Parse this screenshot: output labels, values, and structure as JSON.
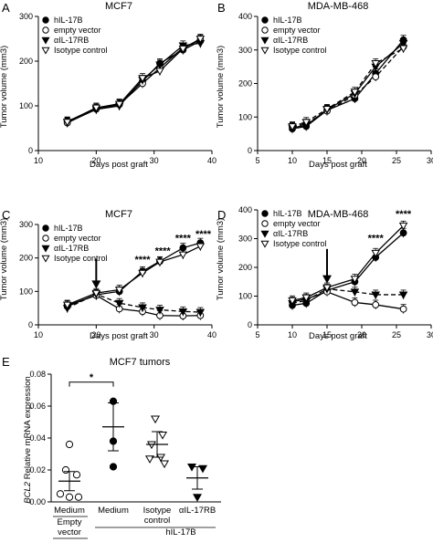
{
  "chart_data": [
    {
      "panel": "A",
      "type": "line",
      "title": "MCF7",
      "xlabel": "Days post graft",
      "ylabel": "Tumor volume (mm3)",
      "xlim": [
        10,
        40
      ],
      "ylim": [
        0,
        300
      ],
      "xticks": [
        10,
        20,
        30,
        40
      ],
      "yticks": [
        0,
        100,
        200,
        300
      ],
      "legend_position": "top-left",
      "series": [
        {
          "name": "hIL-17B",
          "marker": "circle-filled",
          "dash": false,
          "x": [
            15,
            20,
            24,
            28,
            31,
            35,
            38
          ],
          "y": [
            65,
            95,
            105,
            155,
            195,
            225,
            245
          ]
        },
        {
          "name": "empty vector",
          "marker": "circle-open",
          "dash": false,
          "x": [
            15,
            20,
            24,
            28,
            31,
            35,
            38
          ],
          "y": [
            62,
            93,
            103,
            150,
            185,
            230,
            248
          ]
        },
        {
          "name": "αIL-17RB",
          "marker": "triangle-down-filled",
          "dash": false,
          "x": [
            15,
            20,
            24,
            28,
            31,
            35,
            38
          ],
          "y": [
            63,
            92,
            100,
            158,
            192,
            235,
            240
          ]
        },
        {
          "name": "Isotype control",
          "marker": "triangle-down-open",
          "dash": false,
          "x": [
            15,
            20,
            24,
            28,
            31,
            35,
            38
          ],
          "y": [
            64,
            96,
            104,
            162,
            178,
            228,
            250
          ]
        }
      ],
      "annotations": []
    },
    {
      "panel": "B",
      "type": "line",
      "title": "MDA-MB-468",
      "xlabel": "Days post graft",
      "ylabel": "Tumor volume (mm3)",
      "xlim": [
        5,
        30
      ],
      "ylim": [
        0,
        400
      ],
      "xticks": [
        5,
        10,
        15,
        20,
        25,
        30
      ],
      "yticks": [
        0,
        100,
        200,
        300,
        400
      ],
      "legend_position": "top-left",
      "series": [
        {
          "name": "hIL-17B",
          "marker": "circle-filled",
          "dash": false,
          "x": [
            10,
            12,
            15,
            19,
            22,
            26
          ],
          "y": [
            65,
            72,
            120,
            155,
            230,
            330
          ]
        },
        {
          "name": "empty vector",
          "marker": "circle-open",
          "dash": true,
          "x": [
            10,
            12,
            15,
            19,
            22,
            26
          ],
          "y": [
            70,
            80,
            118,
            165,
            220,
            310
          ]
        },
        {
          "name": "αIL-17RB",
          "marker": "triangle-down-filled",
          "dash": false,
          "x": [
            10,
            12,
            15,
            19,
            22,
            26
          ],
          "y": [
            68,
            75,
            122,
            170,
            250,
            320
          ]
        },
        {
          "name": "Isotype control",
          "marker": "triangle-down-open",
          "dash": true,
          "x": [
            10,
            12,
            15,
            19,
            22,
            26
          ],
          "y": [
            72,
            85,
            124,
            175,
            260,
            305
          ]
        }
      ],
      "annotations": []
    },
    {
      "panel": "C",
      "type": "line",
      "title": "MCF7",
      "xlabel": "Days post graft",
      "ylabel": "Tumor volume (mm3)",
      "xlim": [
        10,
        40
      ],
      "ylim": [
        0,
        300
      ],
      "xticks": [
        10,
        20,
        30,
        40
      ],
      "yticks": [
        0,
        100,
        200,
        300
      ],
      "legend_position": "top-left",
      "arrow_at_x": 20,
      "series": [
        {
          "name": "hIL-17B",
          "marker": "circle-filled",
          "dash": false,
          "x": [
            15,
            20,
            24,
            28,
            31,
            35,
            38
          ],
          "y": [
            55,
            90,
            100,
            160,
            190,
            230,
            245
          ]
        },
        {
          "name": "empty vector",
          "marker": "circle-open",
          "dash": false,
          "x": [
            15,
            20,
            24,
            28,
            31,
            35,
            38
          ],
          "y": [
            58,
            88,
            48,
            40,
            28,
            27,
            28
          ]
        },
        {
          "name": "αIL-17RB",
          "marker": "triangle-down-filled",
          "dash": true,
          "x": [
            15,
            20,
            24,
            28,
            31,
            35,
            38
          ],
          "y": [
            50,
            92,
            65,
            52,
            45,
            40,
            38
          ]
        },
        {
          "name": "Isotype control",
          "marker": "triangle-down-open",
          "dash": false,
          "x": [
            15,
            20,
            24,
            28,
            31,
            35,
            38
          ],
          "y": [
            60,
            95,
            105,
            155,
            188,
            210,
            235
          ]
        }
      ],
      "annotations": [
        {
          "text": "****",
          "x": 28,
          "y": 185
        },
        {
          "text": "****",
          "x": 31.5,
          "y": 212
        },
        {
          "text": "****",
          "x": 35,
          "y": 250
        },
        {
          "text": "****",
          "x": 38.5,
          "y": 262
        }
      ]
    },
    {
      "panel": "D",
      "type": "line",
      "title": "MDA-MB-468",
      "xlabel": "Days post graft",
      "ylabel": "Tumor volume (mm3)",
      "xlim": [
        5,
        30
      ],
      "ylim": [
        0,
        400
      ],
      "xticks": [
        5,
        10,
        15,
        20,
        25,
        30
      ],
      "yticks": [
        0,
        100,
        200,
        300,
        400
      ],
      "legend_position": "top-left",
      "arrow_at_x": 15,
      "series": [
        {
          "name": "hIL-17B",
          "marker": "circle-filled",
          "dash": false,
          "x": [
            10,
            12,
            15,
            19,
            22,
            26
          ],
          "y": [
            68,
            75,
            120,
            150,
            235,
            320
          ]
        },
        {
          "name": "empty vector",
          "marker": "circle-open",
          "dash": false,
          "x": [
            10,
            12,
            15,
            19,
            22,
            26
          ],
          "y": [
            80,
            90,
            115,
            78,
            70,
            55
          ]
        },
        {
          "name": "αIL-17RB",
          "marker": "triangle-down-filled",
          "dash": true,
          "x": [
            10,
            12,
            15,
            19,
            22,
            26
          ],
          "y": [
            75,
            85,
            125,
            115,
            105,
            105
          ]
        },
        {
          "name": "Isotype control",
          "marker": "triangle-down-open",
          "dash": false,
          "x": [
            10,
            12,
            15,
            19,
            22,
            26
          ],
          "y": [
            85,
            95,
            130,
            160,
            250,
            345
          ]
        }
      ],
      "annotations": [
        {
          "text": "****",
          "x": 22,
          "y": 290
        },
        {
          "text": "****",
          "x": 26,
          "y": 375
        }
      ]
    },
    {
      "panel": "E",
      "type": "scatter",
      "title": "MCF7 tumors",
      "ylabel": "BCL2 Relative mRNA expression",
      "ylabel_italic_part": "BCL2",
      "ylabel_rest": " Relative mRNA expression",
      "ylim": [
        0,
        0.08
      ],
      "yticks": [
        "0.00",
        "0.02",
        "0.04",
        "0.06",
        "0.08"
      ],
      "groups": [
        {
          "label": "Medium",
          "label2": "",
          "marker": "circle-open",
          "mean": 0.013,
          "sem": 0.006,
          "values": [
            0.036,
            0.02,
            0.017,
            0.005,
            0.003,
            0.003
          ]
        },
        {
          "label": "Medium",
          "label2": "",
          "marker": "circle-filled",
          "mean": 0.047,
          "sem": 0.015,
          "values": [
            0.063,
            0.038,
            0.022
          ]
        },
        {
          "label": "Isotype",
          "label2": "control",
          "marker": "triangle-down-open",
          "mean": 0.036,
          "sem": 0.008,
          "values": [
            0.052,
            0.042,
            0.036,
            0.028,
            0.027,
            0.024
          ]
        },
        {
          "label": "αIL-17RB",
          "label2": "",
          "marker": "triangle-down-filled",
          "mean": 0.015,
          "sem": 0.007,
          "values": [
            0.022,
            0.021,
            0.003
          ]
        }
      ],
      "significance": {
        "text": "*",
        "from": 0,
        "to": 1
      },
      "bottom_labels": {
        "group1": "Empty",
        "group1_line2": "vector",
        "group2": "hIL-17B"
      }
    }
  ],
  "panel_labels": [
    "A",
    "B",
    "C",
    "D",
    "E"
  ]
}
